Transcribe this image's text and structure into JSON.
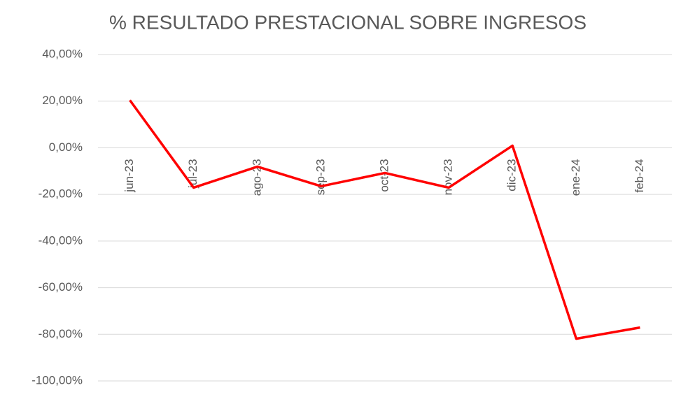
{
  "chart_data": {
    "type": "line",
    "title": "% RESULTADO PRESTACIONAL SOBRE INGRESOS",
    "categories": [
      "jun-23",
      "jul-23",
      "ago-23",
      "sep-23",
      "oct-23",
      "nov-23",
      "dic-23",
      "ene-24",
      "feb-24"
    ],
    "series": [
      {
        "name": null,
        "color": "#ff0000",
        "values": [
          20.4,
          -17.1,
          -8.1,
          -16.5,
          -10.8,
          -17.1,
          0.9,
          -81.9,
          -77.1
        ]
      }
    ],
    "ylim": [
      -100,
      40
    ],
    "yticks": [
      {
        "value": -100,
        "label": "-100,00%"
      },
      {
        "value": -80,
        "label": "-80,00%"
      },
      {
        "value": -60,
        "label": "-60,00%"
      },
      {
        "value": -40,
        "label": "-40,00%"
      },
      {
        "value": -20,
        "label": "-20,00%"
      },
      {
        "value": 0,
        "label": "0,00%"
      },
      {
        "value": 20,
        "label": "20,00%"
      },
      {
        "value": 40,
        "label": "40,00%"
      }
    ],
    "grid": true
  }
}
